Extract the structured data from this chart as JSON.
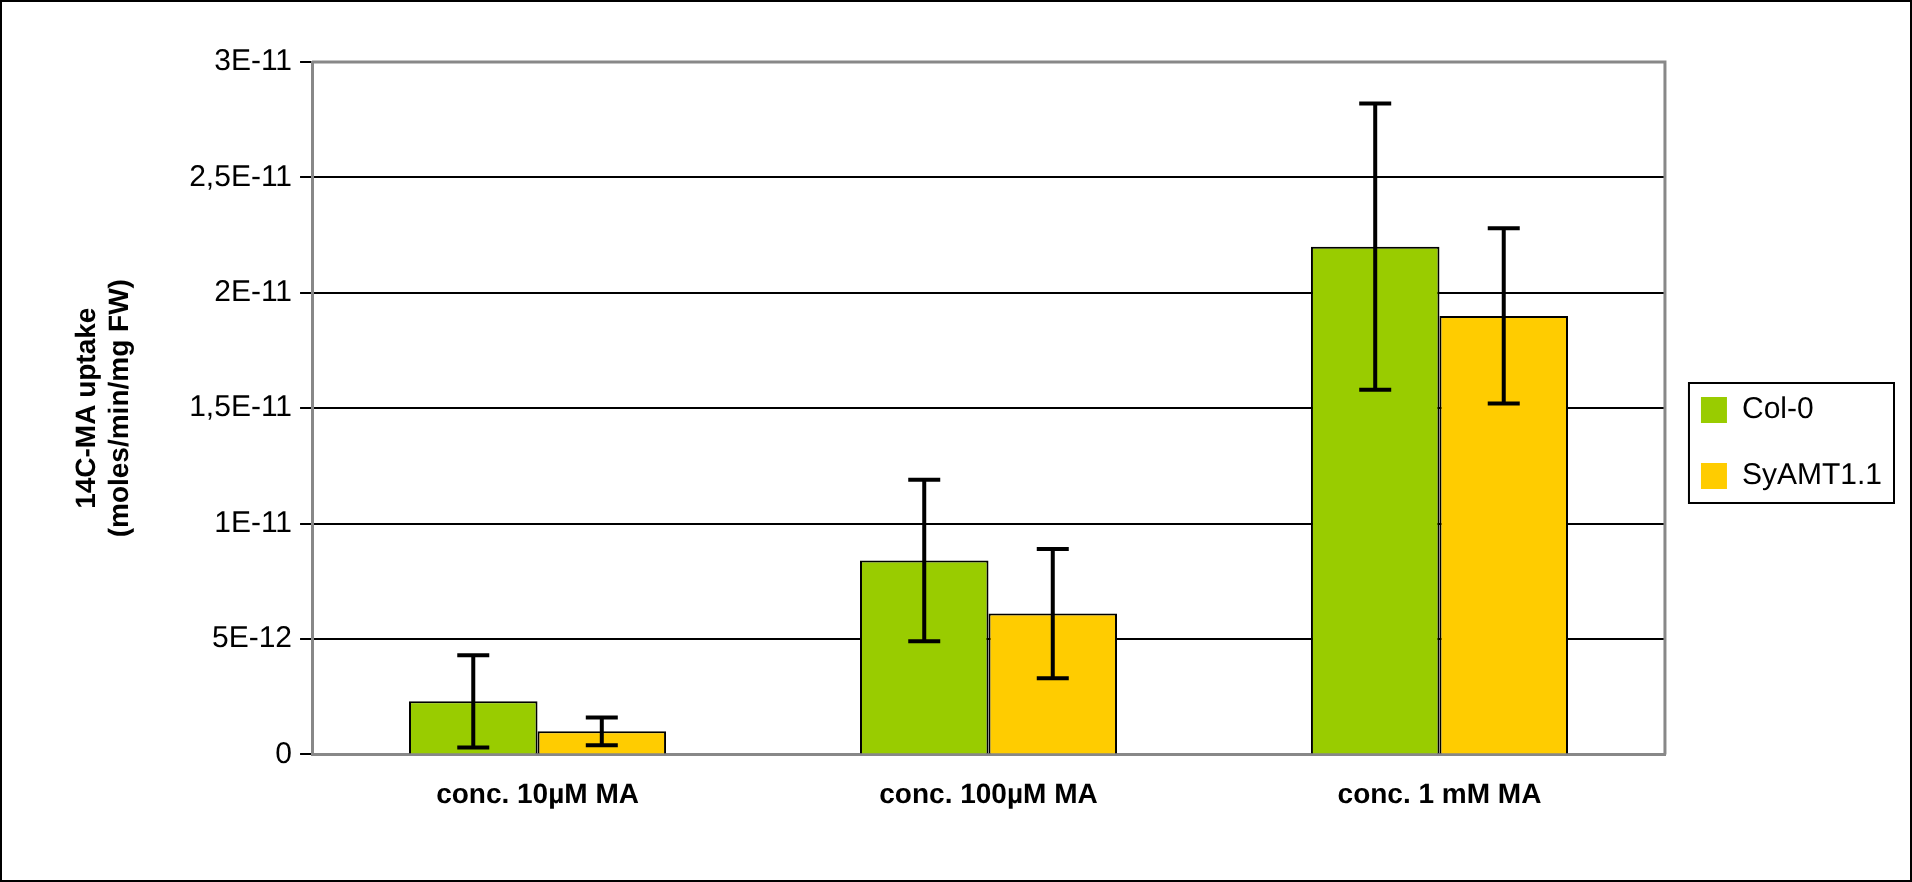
{
  "chart_data": {
    "type": "bar",
    "ylabel": "14C-MA uptake\n(moles/min/mg FW)",
    "categories": [
      "conc. 10µM MA",
      "conc. 100µM MA",
      "conc. 1 mM MA"
    ],
    "series": [
      {
        "name": "Col-0",
        "color": "#99cc00",
        "values": [
          2.3e-12,
          8.4e-12,
          2.2e-11
        ],
        "errors": [
          2e-12,
          3.5e-12,
          6.2e-12
        ]
      },
      {
        "name": "SyAMT1.1",
        "color": "#ffcc00",
        "values": [
          1e-12,
          6.1e-12,
          1.9e-11
        ],
        "errors": [
          6e-13,
          2.8e-12,
          3.8e-12
        ]
      }
    ],
    "ylim": [
      0,
      3e-11
    ],
    "yticks": [
      0,
      {
        "value": 5e-12,
        "label": "5E-12"
      },
      {
        "value": 1e-11,
        "label": "1E-11"
      },
      {
        "value": 1.5e-11,
        "label": "1,5E-11"
      },
      {
        "value": 2e-11,
        "label": "2E-11"
      },
      {
        "value": 2.5e-11,
        "label": "2,5E-11"
      },
      {
        "value": 3e-11,
        "label": "3E-11"
      }
    ],
    "grid": "y",
    "legend": "right"
  }
}
